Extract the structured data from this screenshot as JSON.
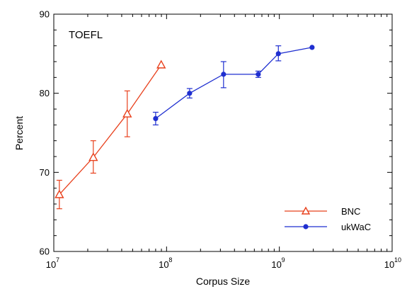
{
  "chart_data": {
    "type": "line",
    "annotation": "TOEFL",
    "xlabel": "Corpus Size",
    "ylabel": "Percent",
    "x_scale": "log",
    "xlim": [
      10000000,
      10000000000
    ],
    "ylim": [
      60,
      90
    ],
    "x_ticks": [
      {
        "value": 10000000,
        "base": "10",
        "exp": "7"
      },
      {
        "value": 100000000,
        "base": "10",
        "exp": "8"
      },
      {
        "value": 1000000000,
        "base": "10",
        "exp": "9"
      },
      {
        "value": 10000000000,
        "base": "10",
        "exp": "10"
      }
    ],
    "y_ticks": [
      {
        "value": 60,
        "label": "60"
      },
      {
        "value": 70,
        "label": "70"
      },
      {
        "value": 80,
        "label": "80"
      },
      {
        "value": 90,
        "label": "90"
      }
    ],
    "grid": false,
    "legend_position": "bottom-right",
    "series": [
      {
        "name": "BNC",
        "color": "#e8401c",
        "marker": "open-triangle",
        "points": [
          {
            "x": 11200000,
            "y": 67.2,
            "err_low": 65.4,
            "err_high": 69.0
          },
          {
            "x": 22400000,
            "y": 71.9,
            "err_low": 69.9,
            "err_high": 74.0
          },
          {
            "x": 44800000,
            "y": 77.4,
            "err_low": 74.5,
            "err_high": 80.3
          },
          {
            "x": 89600000,
            "y": 83.6
          }
        ]
      },
      {
        "name": "ukWaC",
        "color": "#1f2fd0",
        "marker": "filled-circle",
        "points": [
          {
            "x": 80000000,
            "y": 76.8,
            "err_low": 76.0,
            "err_high": 77.6
          },
          {
            "x": 160000000,
            "y": 80.0,
            "err_low": 79.4,
            "err_high": 80.6
          },
          {
            "x": 320000000,
            "y": 82.4,
            "err_low": 80.7,
            "err_high": 84.0
          },
          {
            "x": 650000000,
            "y": 82.4,
            "err_low": 82.0,
            "err_high": 82.8
          },
          {
            "x": 980000000,
            "y": 85.0,
            "err_low": 84.1,
            "err_high": 86.0
          },
          {
            "x": 1950000000,
            "y": 85.8
          }
        ]
      }
    ]
  }
}
